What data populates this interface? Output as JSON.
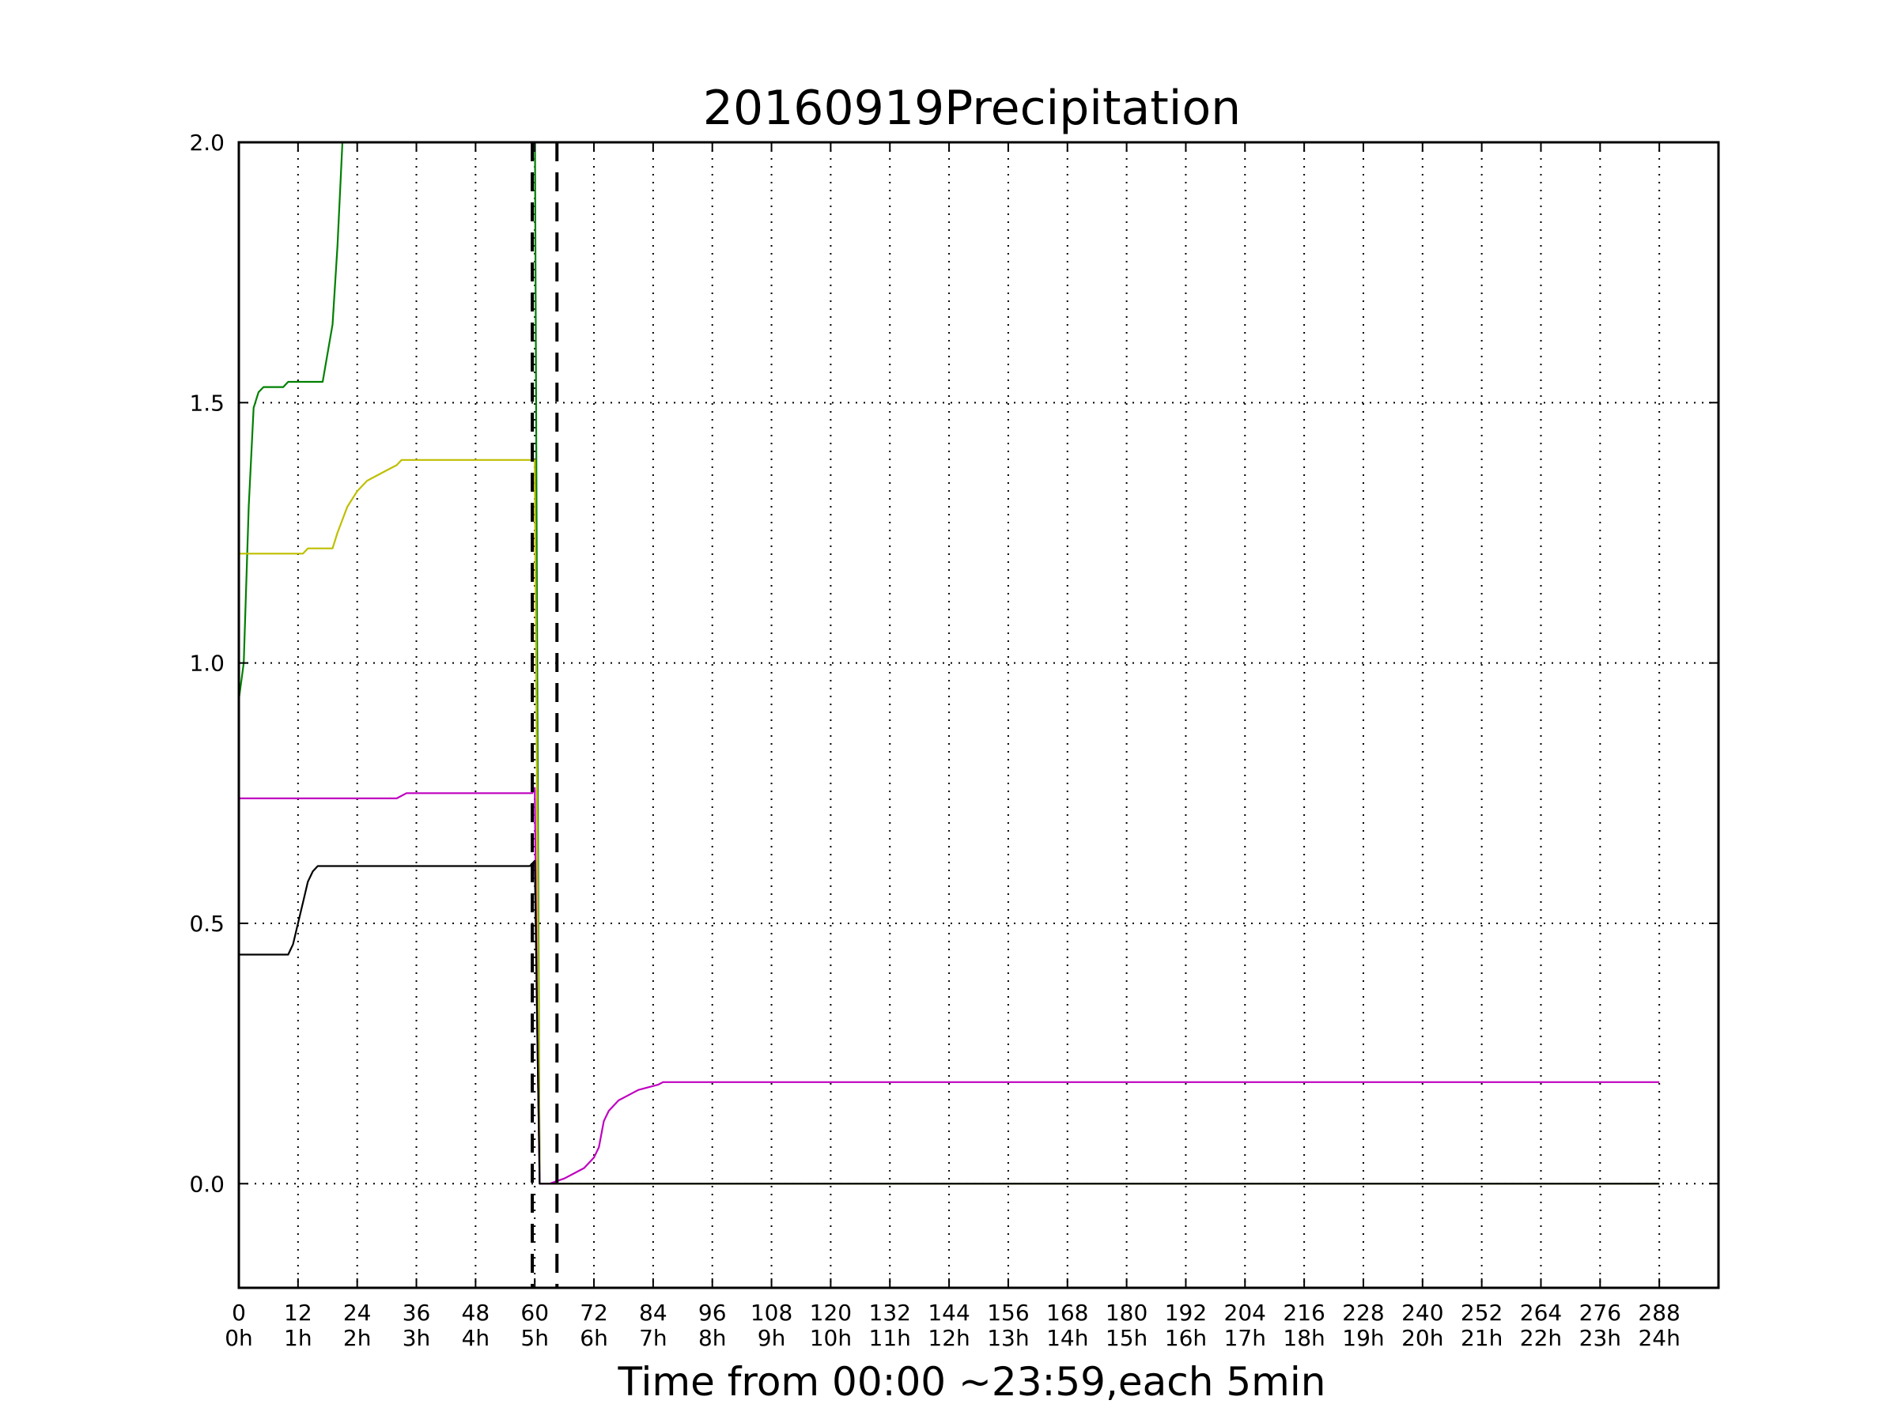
{
  "chart_data": {
    "type": "line",
    "title": "20160919Precipitation",
    "xlabel": "Time from 00:00 ~23:59,each 5min",
    "ylabel": "",
    "xlim": [
      0,
      300
    ],
    "ylim": [
      -0.2,
      2.0
    ],
    "grid": true,
    "x_ticks": [
      0,
      12,
      24,
      36,
      48,
      60,
      72,
      84,
      96,
      108,
      120,
      132,
      144,
      156,
      168,
      180,
      192,
      204,
      216,
      228,
      240,
      252,
      264,
      276,
      288
    ],
    "x_tick_labels": [
      "0",
      "12",
      "24",
      "36",
      "48",
      "60",
      "72",
      "84",
      "96",
      "108",
      "120",
      "132",
      "144",
      "156",
      "168",
      "180",
      "192",
      "204",
      "216",
      "228",
      "240",
      "252",
      "264",
      "276",
      "288"
    ],
    "x_tick_sublabels": [
      "0h",
      "1h",
      "2h",
      "3h",
      "4h",
      "5h",
      "6h",
      "7h",
      "8h",
      "9h",
      "10h",
      "11h",
      "12h",
      "13h",
      "14h",
      "15h",
      "16h",
      "17h",
      "18h",
      "19h",
      "20h",
      "21h",
      "22h",
      "23h",
      "24h"
    ],
    "y_ticks": [
      0.0,
      0.5,
      1.0,
      1.5,
      2.0
    ],
    "y_tick_labels": [
      "0.0",
      "0.5",
      "1.0",
      "1.5",
      "2.0"
    ],
    "vertical_markers": [
      59.5,
      64.5
    ],
    "series": [
      {
        "color": "#008000",
        "points": [
          [
            0,
            0.93
          ],
          [
            1,
            1.0
          ],
          [
            2,
            1.3
          ],
          [
            3,
            1.49
          ],
          [
            4,
            1.52
          ],
          [
            5,
            1.53
          ],
          [
            9,
            1.53
          ],
          [
            10,
            1.54
          ],
          [
            17,
            1.54
          ],
          [
            19,
            1.65
          ],
          [
            20,
            1.8
          ],
          [
            21,
            2.0
          ],
          [
            21.5,
            2.1
          ],
          [
            60,
            2.1
          ],
          [
            60.5,
            1.0
          ],
          [
            61,
            0.0
          ],
          [
            288,
            0.0
          ]
        ]
      },
      {
        "color": "#bfbf00",
        "points": [
          [
            0,
            1.21
          ],
          [
            13,
            1.21
          ],
          [
            14,
            1.22
          ],
          [
            19,
            1.22
          ],
          [
            20,
            1.25
          ],
          [
            22,
            1.3
          ],
          [
            24,
            1.33
          ],
          [
            26,
            1.35
          ],
          [
            28,
            1.36
          ],
          [
            30,
            1.37
          ],
          [
            32,
            1.38
          ],
          [
            33,
            1.39
          ],
          [
            59.5,
            1.39
          ],
          [
            60,
            1.39
          ],
          [
            60.5,
            0.7
          ],
          [
            61,
            0.0
          ],
          [
            288,
            0.0
          ]
        ]
      },
      {
        "color": "#bf00bf",
        "points": [
          [
            0,
            0.74
          ],
          [
            32,
            0.74
          ],
          [
            34,
            0.75
          ],
          [
            59.5,
            0.75
          ],
          [
            60,
            0.76
          ],
          [
            60.5,
            0.3
          ],
          [
            61,
            0.0
          ],
          [
            63,
            0.0
          ],
          [
            66,
            0.01
          ],
          [
            68,
            0.02
          ],
          [
            70,
            0.03
          ],
          [
            72,
            0.05
          ],
          [
            73,
            0.07
          ],
          [
            74,
            0.12
          ],
          [
            75,
            0.14
          ],
          [
            77,
            0.16
          ],
          [
            79,
            0.17
          ],
          [
            81,
            0.18
          ],
          [
            85,
            0.19
          ],
          [
            86,
            0.195
          ],
          [
            288,
            0.195
          ]
        ]
      },
      {
        "color": "#000000",
        "points": [
          [
            0,
            0.44
          ],
          [
            10,
            0.44
          ],
          [
            11,
            0.46
          ],
          [
            12,
            0.5
          ],
          [
            13,
            0.54
          ],
          [
            14,
            0.58
          ],
          [
            15,
            0.6
          ],
          [
            16,
            0.61
          ],
          [
            59,
            0.61
          ],
          [
            60,
            0.62
          ],
          [
            60.5,
            0.3
          ],
          [
            61,
            0.0
          ],
          [
            288,
            0.0
          ]
        ]
      }
    ]
  }
}
